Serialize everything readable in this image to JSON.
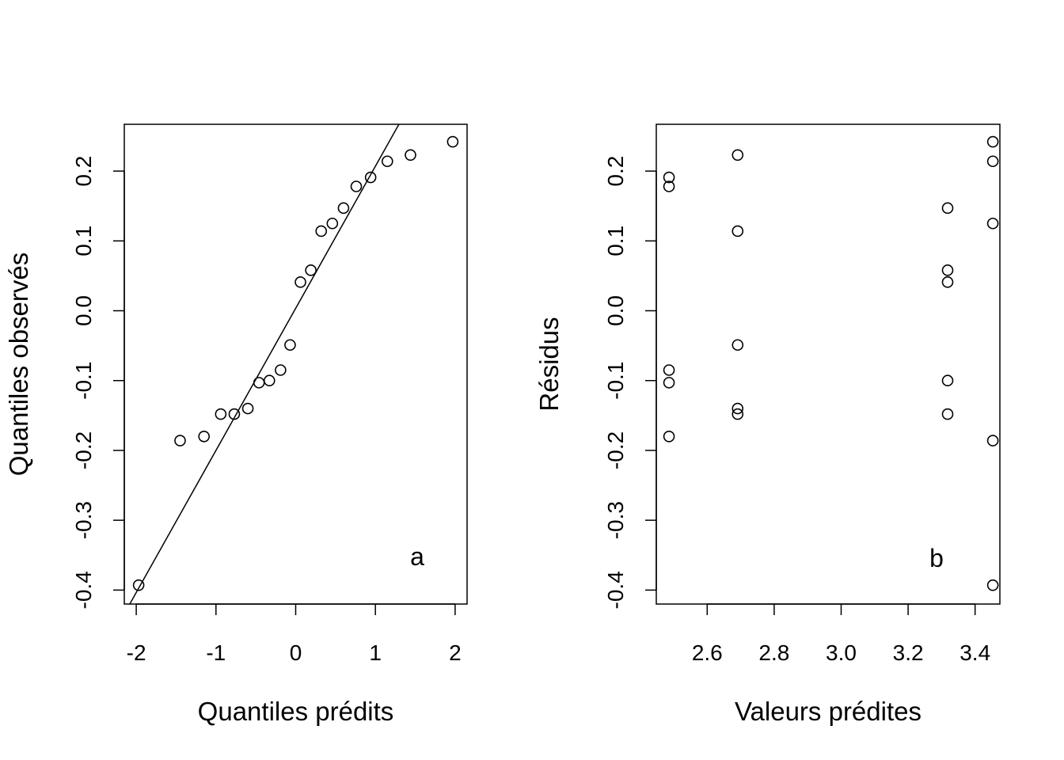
{
  "chart_data": [
    {
      "type": "scatter",
      "panel_label": "a",
      "xlabel": "Quantiles prédits",
      "ylabel": "Quantiles observés",
      "xlim": [
        -2.15,
        2.15
      ],
      "ylim": [
        -0.42,
        0.267
      ],
      "x_ticks": [
        -2,
        -1,
        0,
        1,
        2
      ],
      "x_tick_labels": [
        "-2",
        "-1",
        "0",
        "1",
        "2"
      ],
      "y_ticks": [
        -0.4,
        -0.3,
        -0.2,
        -0.1,
        0.0,
        0.1,
        0.2
      ],
      "y_tick_labels": [
        "-0.4",
        "-0.3",
        "-0.2",
        "-0.1",
        "0.0",
        "0.1",
        "0.2"
      ],
      "grid": false,
      "points": [
        {
          "x": -1.97,
          "y": -0.393
        },
        {
          "x": -1.45,
          "y": -0.186
        },
        {
          "x": -1.15,
          "y": -0.18
        },
        {
          "x": -0.94,
          "y": -0.148
        },
        {
          "x": -0.77,
          "y": -0.148
        },
        {
          "x": -0.6,
          "y": -0.14
        },
        {
          "x": -0.46,
          "y": -0.103
        },
        {
          "x": -0.33,
          "y": -0.1
        },
        {
          "x": -0.19,
          "y": -0.085
        },
        {
          "x": -0.07,
          "y": -0.049
        },
        {
          "x": 0.06,
          "y": 0.041
        },
        {
          "x": 0.19,
          "y": 0.058
        },
        {
          "x": 0.32,
          "y": 0.114
        },
        {
          "x": 0.46,
          "y": 0.125
        },
        {
          "x": 0.6,
          "y": 0.147
        },
        {
          "x": 0.76,
          "y": 0.178
        },
        {
          "x": 0.94,
          "y": 0.191
        },
        {
          "x": 1.15,
          "y": 0.214
        },
        {
          "x": 1.44,
          "y": 0.223
        },
        {
          "x": 1.97,
          "y": 0.242
        }
      ],
      "reference_line": {
        "x1": -2.15,
        "y1": -0.434,
        "x2": 2.15,
        "y2": 0.441
      }
    },
    {
      "type": "scatter",
      "panel_label": "b",
      "xlabel": "Valeurs prédites",
      "ylabel": "Résidus",
      "xlim": [
        2.448,
        3.474
      ],
      "ylim": [
        -0.42,
        0.267
      ],
      "x_ticks": [
        2.6,
        2.8,
        3.0,
        3.2,
        3.4
      ],
      "x_tick_labels": [
        "2.6",
        "2.8",
        "3.0",
        "3.2",
        "3.4"
      ],
      "y_ticks": [
        -0.4,
        -0.3,
        -0.2,
        -0.1,
        0.0,
        0.1,
        0.2
      ],
      "y_tick_labels": [
        "-0.4",
        "-0.3",
        "-0.2",
        "-0.1",
        "0.0",
        "0.1",
        "0.2"
      ],
      "grid": false,
      "points": [
        {
          "x": 2.486,
          "y": 0.191
        },
        {
          "x": 2.486,
          "y": 0.178
        },
        {
          "x": 2.486,
          "y": -0.085
        },
        {
          "x": 2.486,
          "y": -0.103
        },
        {
          "x": 2.486,
          "y": -0.18
        },
        {
          "x": 2.691,
          "y": 0.223
        },
        {
          "x": 2.691,
          "y": 0.114
        },
        {
          "x": 2.691,
          "y": -0.049
        },
        {
          "x": 2.691,
          "y": -0.14
        },
        {
          "x": 2.691,
          "y": -0.148
        },
        {
          "x": 3.318,
          "y": 0.147
        },
        {
          "x": 3.318,
          "y": 0.058
        },
        {
          "x": 3.318,
          "y": 0.041
        },
        {
          "x": 3.318,
          "y": -0.1
        },
        {
          "x": 3.318,
          "y": -0.148
        },
        {
          "x": 3.453,
          "y": 0.242
        },
        {
          "x": 3.453,
          "y": 0.214
        },
        {
          "x": 3.453,
          "y": 0.125
        },
        {
          "x": 3.453,
          "y": -0.186
        },
        {
          "x": 3.453,
          "y": -0.393
        }
      ]
    }
  ]
}
